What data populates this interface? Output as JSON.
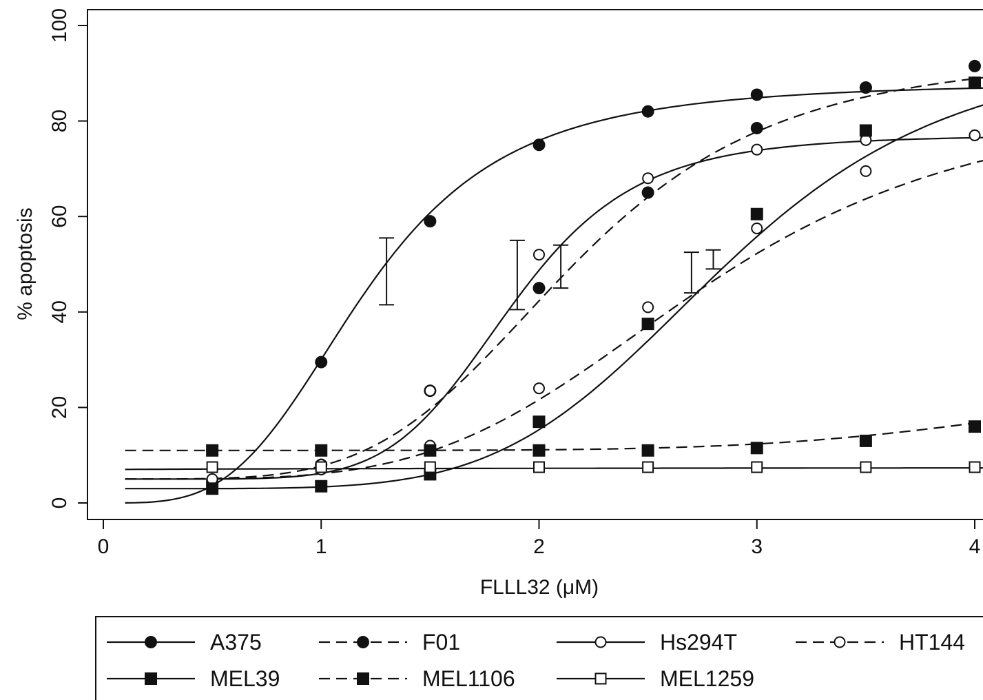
{
  "chart_data": {
    "type": "line",
    "title": "",
    "xlabel": "FLLL32 (μM)",
    "ylabel": "% apoptosis",
    "xlim": [
      0,
      4
    ],
    "ylim": [
      0,
      100
    ],
    "x_ticks": [
      "0",
      "1",
      "2",
      "3",
      "4"
    ],
    "y_ticks": [
      "0",
      "20",
      "40",
      "60",
      "80",
      "100"
    ],
    "grid": false,
    "legend_position": "bottom",
    "series": [
      {
        "name": "A375",
        "line": "solid",
        "marker": "filled-circle",
        "x": [
          1,
          1.5,
          2,
          2.5,
          3,
          3.5,
          4
        ],
        "y": [
          29.5,
          59,
          75,
          82,
          85.5,
          87,
          88
        ],
        "fit": {
          "bottom": 0,
          "top": 88,
          "ec50": 1.2,
          "hill": 3.6,
          "x_start": 0.1
        }
      },
      {
        "name": "F01",
        "line": "dashed",
        "marker": "filled-circle",
        "x": [
          0.5,
          1,
          1.5,
          2,
          2.5,
          3,
          3.5,
          4
        ],
        "y": [
          4.5,
          8,
          23.5,
          45,
          65,
          78.5,
          87,
          91.5
        ],
        "fit": {
          "bottom": 5,
          "top": 94,
          "ec50": 2.15,
          "hill": 4.5,
          "x_start": 0.1
        }
      },
      {
        "name": "Hs294T",
        "line": "solid",
        "marker": "open-circle",
        "x": [
          0.5,
          1,
          1.5,
          2,
          2.5,
          3,
          3.5,
          4
        ],
        "y": [
          4.5,
          7,
          23.5,
          52,
          68,
          74,
          76,
          77
        ],
        "fit": {
          "bottom": 5,
          "top": 77,
          "ec50": 1.87,
          "hill": 6.5,
          "x_start": 0.1
        }
      },
      {
        "name": "HT144",
        "line": "dashed",
        "marker": "open-circle",
        "x": [
          0.5,
          1,
          1.5,
          2,
          2.5,
          3,
          3.5,
          4
        ],
        "y": [
          5,
          8,
          12,
          24,
          41,
          57.5,
          69.5,
          77
        ],
        "fit": {
          "bottom": 5,
          "top": 85,
          "ec50": 2.75,
          "hill": 4.2,
          "x_start": 0.1
        }
      },
      {
        "name": "MEL39",
        "line": "solid",
        "marker": "filled-square",
        "x": [
          0.5,
          1,
          1.5,
          2,
          2.5,
          3,
          3.5,
          4
        ],
        "y": [
          3,
          3.5,
          6,
          17,
          37.5,
          60.5,
          78,
          88
        ],
        "fit": {
          "bottom": 3,
          "top": 96,
          "ec50": 2.85,
          "hill": 5.3,
          "x_start": 0.1
        }
      },
      {
        "name": "MEL1106",
        "line": "dashed",
        "marker": "filled-square",
        "x": [
          0.5,
          1,
          1.5,
          2,
          2.5,
          3,
          3.5,
          4
        ],
        "y": [
          11,
          11,
          11,
          11,
          11,
          11.5,
          13,
          16
        ],
        "fit": {
          "bottom": 11,
          "top": 30,
          "ec50": 4.6,
          "hill": 6,
          "x_start": 0.1
        }
      },
      {
        "name": "MEL1259",
        "line": "solid",
        "marker": "open-square",
        "x": [
          0.5,
          1,
          1.5,
          2,
          2.5,
          3,
          3.5,
          4
        ],
        "y": [
          7.5,
          7.5,
          7.5,
          7.5,
          7.5,
          7.5,
          7.5,
          7.5
        ],
        "fit": {
          "bottom": 7,
          "top": 7.5,
          "ec50": 2,
          "hill": 1,
          "x_start": 0.1
        }
      }
    ],
    "error_bars": [
      {
        "x": 1.3,
        "low": 41.5,
        "high": 55.5
      },
      {
        "x": 1.9,
        "low": 40.5,
        "high": 55
      },
      {
        "x": 2.1,
        "low": 45,
        "high": 54
      },
      {
        "x": 2.7,
        "low": 44,
        "high": 52.5
      },
      {
        "x": 2.8,
        "low": 49,
        "high": 53
      }
    ]
  }
}
